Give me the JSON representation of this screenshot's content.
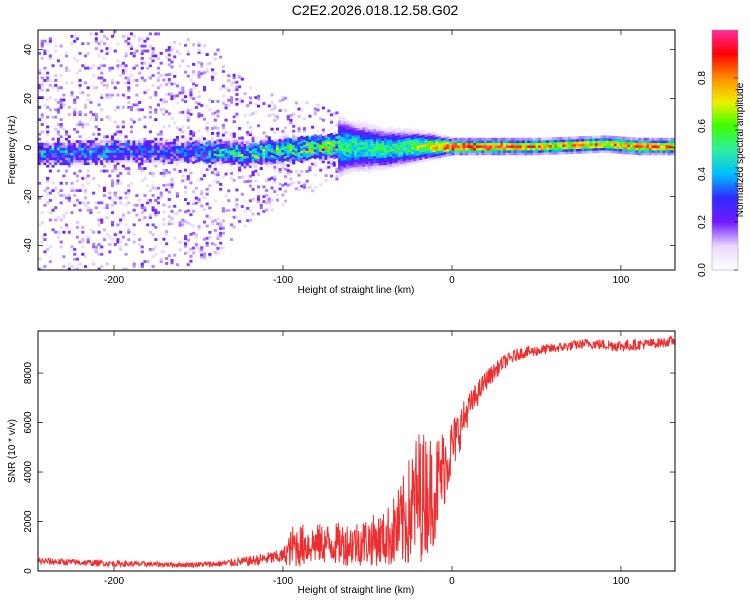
{
  "title": "C2E2.2026.018.12.58.G02",
  "chart_data": [
    {
      "type": "heatmap",
      "xlabel": "Height of straight line (km)",
      "ylabel": "Frequency (Hz)",
      "xlim": [
        -245,
        132
      ],
      "ylim": [
        -50,
        48
      ],
      "xticks": [
        -200,
        -100,
        0,
        100
      ],
      "yticks": [
        -40,
        -20,
        0,
        20,
        40
      ],
      "colorbar": {
        "label": "Normalized spectral amplitude",
        "range": [
          0.0,
          1.0
        ],
        "ticks": [
          0.0,
          0.2,
          0.4,
          0.6,
          0.8
        ],
        "colors": [
          "#ffffff",
          "#e9d8ff",
          "#6f19ff",
          "#2f2bff",
          "#00bfff",
          "#2ef0a0",
          "#3cff00",
          "#f0f000",
          "#ff8c00",
          "#ff0000",
          "#ff2aa0"
        ]
      },
      "center_frequency_profile": [
        {
          "x": -240,
          "f": -3,
          "amp": 0.3,
          "spread": 45
        },
        {
          "x": -200,
          "f": -2,
          "amp": 0.25,
          "spread": 48
        },
        {
          "x": -160,
          "f": -2,
          "amp": 0.25,
          "spread": 45
        },
        {
          "x": -140,
          "f": -2,
          "amp": 0.35,
          "spread": 40
        },
        {
          "x": -120,
          "f": -3,
          "amp": 0.4,
          "spread": 25
        },
        {
          "x": -80,
          "f": 0,
          "amp": 0.5,
          "spread": 15
        },
        {
          "x": -60,
          "f": 0,
          "amp": 0.5,
          "spread": 10
        },
        {
          "x": -40,
          "f": -1,
          "amp": 0.5,
          "spread": 8
        },
        {
          "x": -20,
          "f": 0,
          "amp": 0.6,
          "spread": 6
        },
        {
          "x": 0,
          "f": 0,
          "amp": 0.95,
          "spread": 3
        },
        {
          "x": 50,
          "f": 0,
          "amp": 0.8,
          "spread": 3
        },
        {
          "x": 90,
          "f": 1,
          "amp": 0.75,
          "spread": 3
        },
        {
          "x": 110,
          "f": 0,
          "amp": 0.9,
          "spread": 3
        },
        {
          "x": 130,
          "f": 0,
          "amp": 0.8,
          "spread": 3
        }
      ]
    },
    {
      "type": "line",
      "xlabel": "Height of straight line (km)",
      "ylabel": "SNR (10 * v/v)",
      "xlim": [
        -245,
        132
      ],
      "ylim": [
        0,
        9700
      ],
      "xticks": [
        -200,
        -100,
        0,
        100
      ],
      "yticks": [
        0,
        2000,
        4000,
        6000,
        8000
      ],
      "color": "#ee2e2e",
      "x": [
        -245,
        -200,
        -160,
        -140,
        -120,
        -100,
        -94,
        -80,
        -60,
        -40,
        -30,
        -20,
        -10,
        0,
        10,
        20,
        30,
        40,
        60,
        80,
        100,
        120,
        132
      ],
      "y": [
        400,
        300,
        250,
        280,
        400,
        600,
        1000,
        1100,
        1100,
        1300,
        1800,
        3000,
        3300,
        5000,
        6600,
        7700,
        8400,
        8800,
        9000,
        9200,
        9100,
        9200,
        9300
      ],
      "noise_amplitude": [
        150,
        120,
        100,
        120,
        200,
        300,
        900,
        800,
        900,
        1100,
        1800,
        2800,
        2200,
        1200,
        600,
        400,
        300,
        250,
        200,
        200,
        250,
        200,
        200
      ]
    }
  ]
}
